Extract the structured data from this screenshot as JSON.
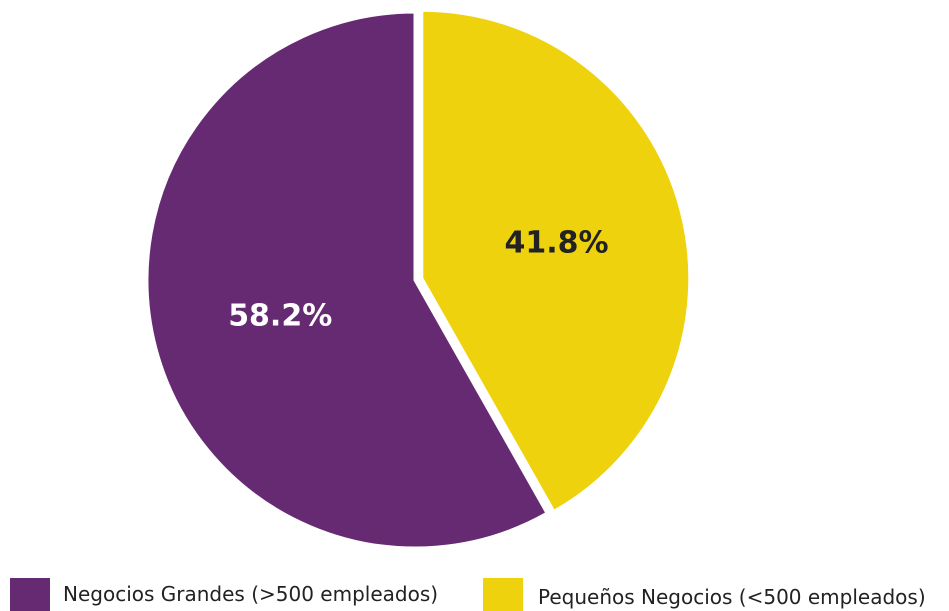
{
  "chart_data": {
    "type": "pie",
    "slices": [
      {
        "label": "Negocios Grandes (>500 empleados)",
        "value": 58.2,
        "display": "58.2%",
        "color": "#662a73",
        "label_color": "#ffffff"
      },
      {
        "label": "Pequeños Negocios (<500 empleados)",
        "value": 41.8,
        "display": "41.8%",
        "color": "#efd20e",
        "label_color": "#222222"
      }
    ],
    "legend_position": "bottom"
  }
}
